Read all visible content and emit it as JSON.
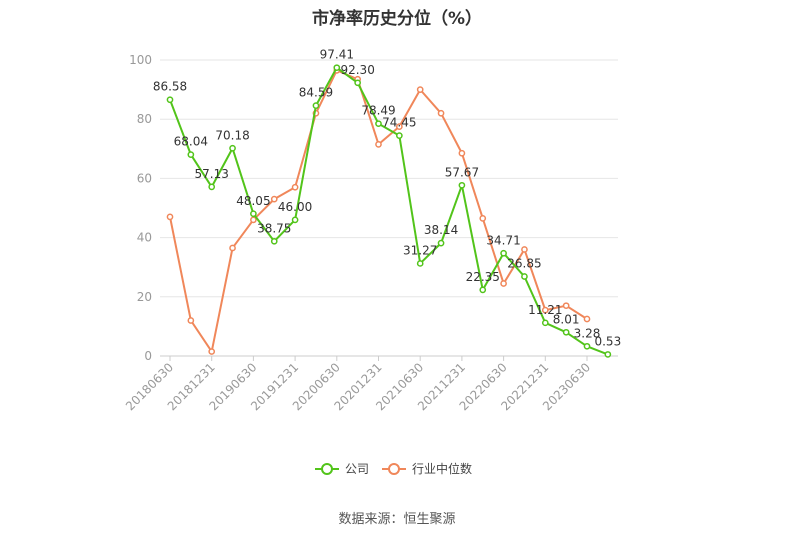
{
  "chart_data": {
    "type": "line",
    "title": "市净率历史分位（%）",
    "source": "数据来源：恒生聚源",
    "ylim": [
      0,
      100
    ],
    "yticks": [
      0,
      20,
      40,
      60,
      80,
      100
    ],
    "x_tick_labels": [
      "20180630",
      "20181231",
      "20190630",
      "20191231",
      "20200630",
      "20201231",
      "20210630",
      "20211231",
      "20220630",
      "20221231",
      "20230630"
    ],
    "series": [
      {
        "name": "公司",
        "color": "#52c41a",
        "values": [
          86.58,
          68.04,
          57.13,
          70.18,
          48.05,
          38.75,
          46.0,
          84.59,
          97.41,
          92.3,
          78.49,
          74.45,
          31.27,
          38.14,
          57.67,
          22.35,
          34.71,
          26.85,
          11.21,
          8.01,
          3.28,
          0.53
        ],
        "labels": [
          "86.58",
          "68.04",
          "57.13",
          "70.18",
          "48.05",
          "38.75",
          "46.00",
          "84.59",
          "97.41",
          "92.30",
          "78.49",
          "74.45",
          "31.27",
          "38.14",
          "57.67",
          "22.35",
          "34.71",
          "26.85",
          "11.21",
          "8.01",
          "3.28",
          "0.53"
        ]
      },
      {
        "name": "行业中位数",
        "color": "#f0875a",
        "values": [
          47,
          12,
          1.5,
          36.5,
          46,
          53,
          57,
          82,
          96.5,
          93.5,
          71.5,
          77.5,
          90,
          82,
          68.5,
          46.5,
          24.5,
          36,
          15.5,
          17,
          12.5,
          null
        ]
      }
    ],
    "grid": true,
    "legend_position": "bottom"
  }
}
